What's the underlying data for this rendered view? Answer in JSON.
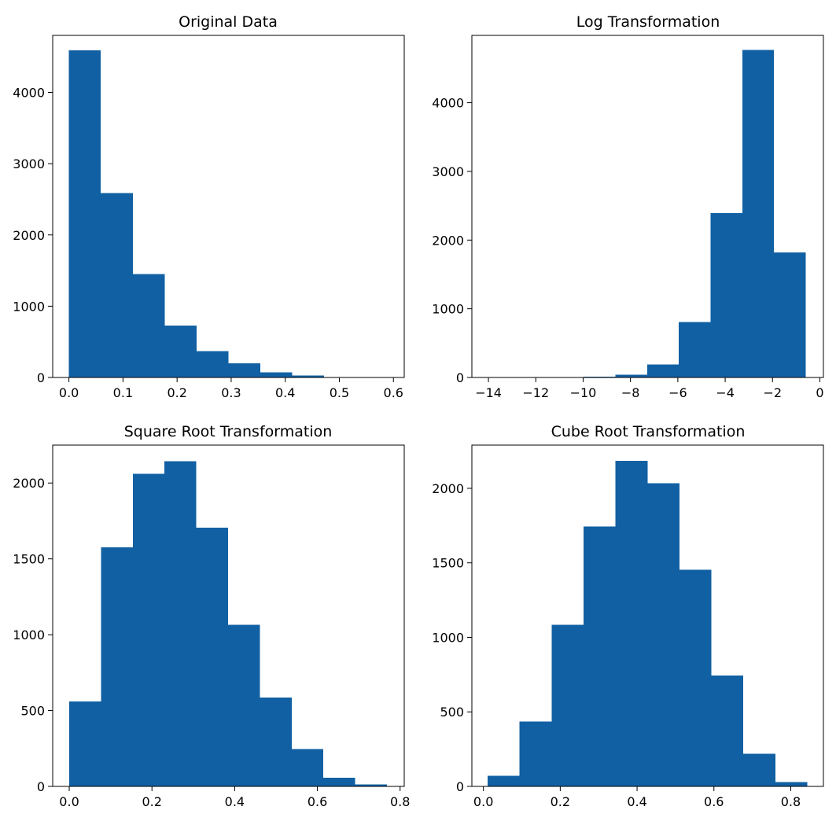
{
  "colors": {
    "bar": "#1160a3",
    "axis": "#000000",
    "background": "#ffffff"
  },
  "chart_data": [
    {
      "type": "bar",
      "title": "Original Data",
      "xlabel": "",
      "ylabel": "",
      "xlim": [
        -0.03,
        0.62
      ],
      "ylim": [
        0,
        4800
      ],
      "xticks": [
        0.0,
        0.1,
        0.2,
        0.3,
        0.4,
        0.5,
        0.6
      ],
      "xtick_labels": [
        "0.0",
        "0.1",
        "0.2",
        "0.3",
        "0.4",
        "0.5",
        "0.6"
      ],
      "yticks": [
        0,
        1000,
        2000,
        3000,
        4000
      ],
      "ytick_labels": [
        "0",
        "1000",
        "2000",
        "3000",
        "4000"
      ],
      "bin_edges": [
        0.0,
        0.059,
        0.118,
        0.177,
        0.236,
        0.295,
        0.354,
        0.413,
        0.472,
        0.531,
        0.59
      ],
      "values": [
        4590,
        2590,
        1450,
        730,
        370,
        200,
        70,
        25,
        8,
        2
      ],
      "grid": false
    },
    {
      "type": "bar",
      "title": "Log Transformation",
      "xlabel": "",
      "ylabel": "",
      "xlim": [
        -14.7,
        0.15
      ],
      "ylim": [
        0,
        4980
      ],
      "xticks": [
        -14,
        -12,
        -10,
        -8,
        -6,
        -4,
        -2,
        0
      ],
      "xtick_labels": [
        "−14",
        "−12",
        "−10",
        "−8",
        "−6",
        "−4",
        "−2",
        "0"
      ],
      "yticks": [
        0,
        1000,
        2000,
        3000,
        4000
      ],
      "ytick_labels": [
        "0",
        "1000",
        "2000",
        "3000",
        "4000"
      ],
      "bin_edges": [
        -14.0,
        -12.66,
        -11.32,
        -9.98,
        -8.64,
        -7.3,
        -5.96,
        -4.62,
        -3.28,
        -1.94,
        -0.6
      ],
      "values": [
        1,
        0,
        2,
        10,
        40,
        190,
        810,
        2390,
        4770,
        1820
      ],
      "grid": false
    },
    {
      "type": "bar",
      "title": "Square Root Transformation",
      "xlabel": "",
      "ylabel": "",
      "xlim": [
        -0.04,
        0.81
      ],
      "ylim": [
        0,
        2250
      ],
      "xticks": [
        0.0,
        0.2,
        0.4,
        0.6,
        0.8
      ],
      "xtick_labels": [
        "0.0",
        "0.2",
        "0.4",
        "0.6",
        "0.8"
      ],
      "yticks": [
        0,
        500,
        1000,
        1500,
        2000
      ],
      "ytick_labels": [
        "0",
        "500",
        "1000",
        "1500",
        "2000"
      ],
      "bin_edges": [
        0.0,
        0.0768,
        0.1536,
        0.2304,
        0.3072,
        0.384,
        0.4608,
        0.5376,
        0.6144,
        0.6912,
        0.768
      ],
      "values": [
        560,
        1575,
        2060,
        2145,
        1705,
        1065,
        585,
        245,
        58,
        12
      ],
      "grid": false
    },
    {
      "type": "bar",
      "title": "Cube Root Transformation",
      "xlabel": "",
      "ylabel": "",
      "xlim": [
        -0.03,
        0.885
      ],
      "ylim": [
        0,
        2290
      ],
      "xticks": [
        0.0,
        0.2,
        0.4,
        0.6,
        0.8
      ],
      "xtick_labels": [
        "0.0",
        "0.2",
        "0.4",
        "0.6",
        "0.8"
      ],
      "yticks": [
        0,
        500,
        1000,
        1500,
        2000
      ],
      "ytick_labels": [
        "0",
        "500",
        "1000",
        "1500",
        "2000"
      ],
      "bin_edges": [
        0.011,
        0.0942,
        0.1774,
        0.2606,
        0.3438,
        0.427,
        0.5102,
        0.5934,
        0.6766,
        0.7598,
        0.843
      ],
      "values": [
        70,
        435,
        1085,
        1745,
        2185,
        2035,
        1455,
        745,
        220,
        30
      ],
      "grid": false
    }
  ]
}
